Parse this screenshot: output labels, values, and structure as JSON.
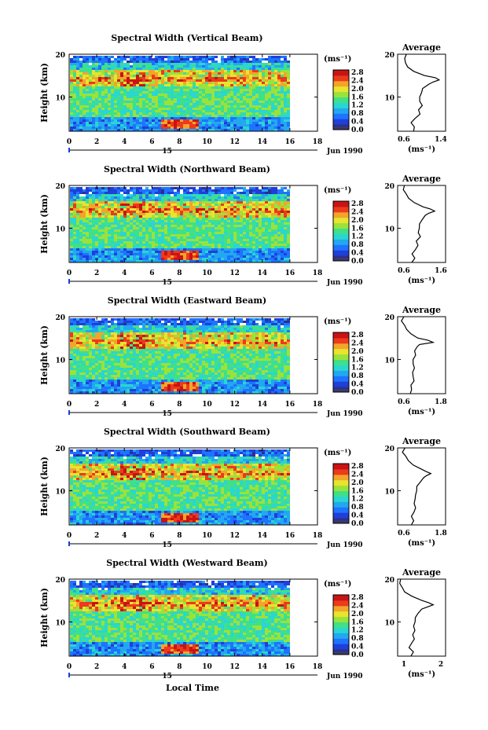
{
  "xlabel": "Local Time",
  "date_label": "Jun 1990",
  "day_label": "15",
  "ylabel": "Height (km)",
  "unit_label": "(ms⁻¹)",
  "profile_title": "Average",
  "profile_unit": "(ms⁻¹)",
  "colorbar_ticks": [
    "2.8",
    "2.4",
    "2.0",
    "1.6",
    "1.2",
    "0.8",
    "0.4",
    "0.0"
  ],
  "colorscale": [
    "#2b2f8f",
    "#1f3fd8",
    "#1e73ff",
    "#22a8f0",
    "#2ad6d0",
    "#3fe08a",
    "#9be23a",
    "#e8e430",
    "#f2a52a",
    "#ec3a1c",
    "#c81414"
  ],
  "chart_data": [
    {
      "type": "heatmap",
      "title": "Spectral Width (Vertical Beam)",
      "x_ticks": [
        "0",
        "2",
        "4",
        "6",
        "8",
        "10",
        "12",
        "14",
        "16",
        "18"
      ],
      "y_ticks": [
        "20",
        "10"
      ],
      "xlim": [
        0,
        18
      ],
      "ylim": [
        2,
        20
      ],
      "data_end_hour": 16,
      "profile": {
        "type": "line",
        "x_ticks": [
          "0.6",
          "1.4"
        ],
        "xlim": [
          0.5,
          1.6
        ],
        "heights": [
          2,
          3,
          4,
          5,
          6,
          7,
          8,
          9,
          10,
          11,
          12,
          13,
          13.5,
          14,
          14.5,
          15,
          16,
          17,
          18,
          19,
          20
        ],
        "values": [
          0.85,
          0.9,
          0.8,
          0.92,
          1.0,
          0.98,
          1.05,
          1.0,
          1.02,
          1.05,
          1.08,
          1.2,
          1.3,
          1.45,
          1.35,
          1.1,
          0.85,
          0.72,
          0.7,
          0.68,
          0.7
        ]
      }
    },
    {
      "type": "heatmap",
      "title": "Spectral Width (Northward Beam)",
      "x_ticks": [
        "0",
        "2",
        "4",
        "6",
        "8",
        "10",
        "12",
        "14",
        "16",
        "18"
      ],
      "y_ticks": [
        "20",
        "10"
      ],
      "xlim": [
        0,
        18
      ],
      "ylim": [
        2,
        20
      ],
      "data_end_hour": 16,
      "profile": {
        "type": "line",
        "x_ticks": [
          "0.6",
          "1.6"
        ],
        "xlim": [
          0.5,
          1.8
        ],
        "heights": [
          2,
          3,
          4,
          5,
          6,
          7,
          8,
          9,
          10,
          11,
          12,
          13,
          13.5,
          14,
          14.5,
          15,
          16,
          17,
          18,
          19,
          20
        ],
        "values": [
          0.9,
          0.95,
          0.88,
          0.98,
          1.05,
          1.02,
          1.1,
          1.05,
          1.08,
          1.1,
          1.15,
          1.25,
          1.35,
          1.5,
          1.4,
          1.2,
          0.95,
          0.8,
          0.72,
          0.65,
          0.7
        ]
      }
    },
    {
      "type": "heatmap",
      "title": "Spectral Width (Eastward Beam)",
      "x_ticks": [
        "0",
        "2",
        "4",
        "6",
        "8",
        "10",
        "12",
        "14",
        "16",
        "18"
      ],
      "y_ticks": [
        "20",
        "10"
      ],
      "xlim": [
        0,
        18
      ],
      "ylim": [
        2,
        20
      ],
      "data_end_hour": 16,
      "profile": {
        "type": "line",
        "x_ticks": [
          "0.6",
          "1.8"
        ],
        "xlim": [
          0.5,
          2.0
        ],
        "heights": [
          2,
          3,
          4,
          5,
          6,
          7,
          8,
          9,
          10,
          11,
          12,
          13,
          13.5,
          14,
          14.5,
          15,
          16,
          17,
          18,
          19,
          20
        ],
        "values": [
          0.9,
          0.95,
          0.9,
          1.0,
          1.0,
          0.98,
          1.02,
          1.0,
          1.0,
          1.05,
          1.05,
          1.1,
          1.2,
          1.6,
          1.45,
          1.15,
          0.9,
          0.8,
          0.7,
          0.62,
          0.68
        ]
      }
    },
    {
      "type": "heatmap",
      "title": "Spectral Width (Southward Beam)",
      "x_ticks": [
        "0",
        "2",
        "4",
        "6",
        "8",
        "10",
        "12",
        "14",
        "16",
        "18"
      ],
      "y_ticks": [
        "20",
        "10"
      ],
      "xlim": [
        0,
        18
      ],
      "ylim": [
        2,
        20
      ],
      "data_end_hour": 16,
      "profile": {
        "type": "line",
        "x_ticks": [
          "0.6",
          "1.8"
        ],
        "xlim": [
          0.5,
          2.0
        ],
        "heights": [
          2,
          3,
          4,
          5,
          6,
          7,
          8,
          9,
          10,
          11,
          12,
          13,
          13.5,
          14,
          14.5,
          15,
          16,
          17,
          18,
          19,
          20
        ],
        "values": [
          0.95,
          1.0,
          0.92,
          1.0,
          1.05,
          1.02,
          1.05,
          1.05,
          1.08,
          1.12,
          1.2,
          1.3,
          1.4,
          1.55,
          1.4,
          1.25,
          1.0,
          0.85,
          0.75,
          0.65,
          0.72
        ]
      }
    },
    {
      "type": "heatmap",
      "title": "Spectral Width (Westward Beam)",
      "x_ticks": [
        "0",
        "2",
        "4",
        "6",
        "8",
        "10",
        "12",
        "14",
        "16",
        "18"
      ],
      "y_ticks": [
        "20",
        "10"
      ],
      "xlim": [
        0,
        18
      ],
      "ylim": [
        2,
        20
      ],
      "data_end_hour": 16,
      "profile": {
        "type": "line",
        "x_ticks": [
          "1",
          "2"
        ],
        "xlim": [
          0.6,
          2.0
        ],
        "heights": [
          2,
          3,
          4,
          5,
          6,
          7,
          8,
          9,
          10,
          11,
          12,
          13,
          13.5,
          14,
          14.5,
          15,
          16,
          17,
          18,
          19,
          20
        ],
        "values": [
          1.0,
          1.05,
          0.95,
          1.02,
          1.08,
          1.05,
          1.1,
          1.08,
          1.1,
          1.12,
          1.18,
          1.3,
          1.45,
          1.65,
          1.5,
          1.3,
          1.0,
          0.82,
          0.72,
          0.66,
          0.7
        ]
      }
    }
  ]
}
